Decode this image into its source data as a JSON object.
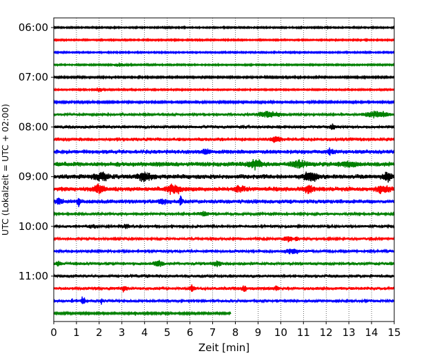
{
  "chart_data": {
    "type": "line",
    "title": "",
    "xlabel": "Zeit  [min]",
    "ylabel": "UTC (Lokalzeit = UTC + 02:00)",
    "xlim": [
      0,
      15
    ],
    "xticks": [
      0,
      1,
      2,
      3,
      4,
      5,
      6,
      7,
      8,
      9,
      10,
      11,
      12,
      13,
      14,
      15
    ],
    "x_grid": "dotted vertical lines at each minute",
    "ytick_labels": [
      "06:00",
      "07:00",
      "08:00",
      "09:00",
      "10:00",
      "11:00"
    ],
    "trace_color_cycle": [
      "#000000",
      "#ff0000",
      "#0000ff",
      "#008000"
    ],
    "traces": [
      {
        "start": "06:00",
        "end_min": 15,
        "color": "#000000",
        "level": 0.15,
        "events": []
      },
      {
        "start": "06:15",
        "end_min": 15,
        "color": "#ff0000",
        "level": 0.15,
        "events": []
      },
      {
        "start": "06:30",
        "end_min": 15,
        "color": "#0000ff",
        "level": 0.15,
        "events": []
      },
      {
        "start": "06:45",
        "end_min": 15,
        "color": "#008000",
        "level": 0.15,
        "events": [
          [
            2.9,
            0.4,
            0.25
          ]
        ]
      },
      {
        "start": "07:00",
        "end_min": 15,
        "color": "#000000",
        "level": 0.18,
        "events": []
      },
      {
        "start": "07:15",
        "end_min": 15,
        "color": "#ff0000",
        "level": 0.15,
        "events": [
          [
            2.0,
            0.45,
            0.15
          ]
        ]
      },
      {
        "start": "07:30",
        "end_min": 15,
        "color": "#0000ff",
        "level": 0.2,
        "events": []
      },
      {
        "start": "07:45",
        "end_min": 15,
        "color": "#008000",
        "level": 0.3,
        "events": [
          [
            9.5,
            0.55,
            0.5
          ],
          [
            14.2,
            0.6,
            0.5
          ]
        ]
      },
      {
        "start": "08:00",
        "end_min": 15,
        "color": "#000000",
        "level": 0.35,
        "events": [
          [
            12.3,
            0.5,
            0.1
          ]
        ]
      },
      {
        "start": "08:15",
        "end_min": 15,
        "color": "#ff0000",
        "level": 0.4,
        "events": [
          [
            9.8,
            0.5,
            0.2
          ]
        ]
      },
      {
        "start": "08:30",
        "end_min": 15,
        "color": "#0000ff",
        "level": 0.45,
        "events": [
          [
            6.7,
            0.6,
            0.15
          ],
          [
            12.2,
            0.5,
            0.15
          ]
        ]
      },
      {
        "start": "08:45",
        "end_min": 15,
        "color": "#008000",
        "level": 0.5,
        "events": [
          [
            8.9,
            0.75,
            0.3
          ],
          [
            10.8,
            0.7,
            0.3
          ],
          [
            13.0,
            0.6,
            0.3
          ]
        ]
      },
      {
        "start": "09:00",
        "end_min": 15,
        "color": "#000000",
        "level": 0.5,
        "events": [
          [
            2.1,
            0.8,
            0.3
          ],
          [
            4.0,
            0.8,
            0.3
          ],
          [
            11.3,
            0.95,
            0.3
          ],
          [
            14.7,
            0.8,
            0.2
          ]
        ]
      },
      {
        "start": "09:15",
        "end_min": 15,
        "color": "#ff0000",
        "level": 0.5,
        "events": [
          [
            2.0,
            0.8,
            0.25
          ],
          [
            5.3,
            0.9,
            0.3
          ],
          [
            8.2,
            0.6,
            0.2
          ],
          [
            11.2,
            0.7,
            0.2
          ],
          [
            14.5,
            0.7,
            0.3
          ]
        ]
      },
      {
        "start": "09:30",
        "end_min": 15,
        "color": "#0000ff",
        "level": 0.45,
        "events": [
          [
            1.1,
            1.0,
            0.06
          ],
          [
            5.6,
            1.5,
            0.05
          ],
          [
            0.2,
            0.7,
            0.15
          ],
          [
            4.8,
            0.6,
            0.15
          ]
        ]
      },
      {
        "start": "09:45",
        "end_min": 15,
        "color": "#008000",
        "level": 0.3,
        "events": [
          [
            6.6,
            0.4,
            0.2
          ]
        ]
      },
      {
        "start": "10:00",
        "end_min": 15,
        "color": "#000000",
        "level": 0.3,
        "events": [
          [
            1.7,
            0.4,
            0.15
          ],
          [
            3.2,
            0.4,
            0.15
          ]
        ]
      },
      {
        "start": "10:15",
        "end_min": 15,
        "color": "#ff0000",
        "level": 0.3,
        "events": [
          [
            10.7,
            0.8,
            0.06
          ],
          [
            10.3,
            0.5,
            0.2
          ]
        ]
      },
      {
        "start": "10:30",
        "end_min": 15,
        "color": "#0000ff",
        "level": 0.3,
        "events": [
          [
            10.5,
            0.5,
            0.3
          ]
        ]
      },
      {
        "start": "10:45",
        "end_min": 15,
        "color": "#008000",
        "level": 0.35,
        "events": [
          [
            0.2,
            0.5,
            0.1
          ],
          [
            4.6,
            0.55,
            0.2
          ],
          [
            7.2,
            0.5,
            0.2
          ]
        ]
      },
      {
        "start": "11:00",
        "end_min": 15,
        "color": "#000000",
        "level": 0.35,
        "events": []
      },
      {
        "start": "11:15",
        "end_min": 15,
        "color": "#ff0000",
        "level": 0.35,
        "events": [
          [
            3.1,
            0.6,
            0.1
          ],
          [
            6.1,
            0.6,
            0.1
          ],
          [
            8.4,
            0.6,
            0.1
          ],
          [
            9.8,
            0.6,
            0.1
          ]
        ]
      },
      {
        "start": "11:30",
        "end_min": 15,
        "color": "#0000ff",
        "level": 0.3,
        "events": [
          [
            1.3,
            0.9,
            0.08
          ],
          [
            2.1,
            0.5,
            0.05
          ],
          [
            0.8,
            0.4,
            0.05
          ]
        ]
      },
      {
        "start": "11:45",
        "end_min": 7.8,
        "color": "#008000",
        "level": 0.2,
        "events": [
          [
            3.6,
            0.4,
            0.1
          ]
        ]
      }
    ]
  }
}
